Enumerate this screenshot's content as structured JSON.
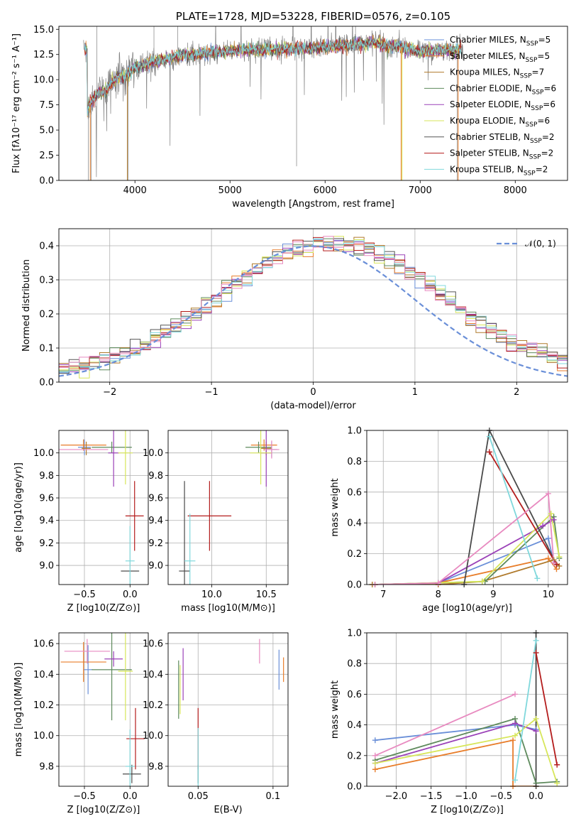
{
  "colors": [
    "#6a8fd8",
    "#e87d2a",
    "#b07a2c",
    "#5e8a5c",
    "#9b42b8",
    "#d7e65a",
    "#555555",
    "#b41c1c",
    "#80d8dc",
    "#e88ac0",
    "#4a4a4a"
  ],
  "chart_data": [
    {
      "id": "spectrum",
      "type": "line",
      "title": "PLATE=1728, MJD=53228, FIBERID=0576, z=0.105",
      "xlabel": "wavelength [Angstrom, rest frame]",
      "ylabel": "Flux [fλ10⁻¹⁷ erg cm⁻² s⁻¹ A⁻¹]",
      "xlim": [
        3200,
        8550
      ],
      "ylim": [
        0,
        15.3
      ],
      "xticks": [
        4000,
        5000,
        6000,
        7000,
        8000
      ],
      "yticks": [
        0.0,
        2.5,
        5.0,
        7.5,
        10.0,
        12.5,
        15.0
      ],
      "grid": false,
      "legend_position": "right",
      "series": [
        {
          "name": "Chabrier MILES, N_SSP=5",
          "color": "#6a8fd8"
        },
        {
          "name": "Salpeter MILES, N_SSP=5",
          "color": "#e87d2a"
        },
        {
          "name": "Kroupa MILES, N_SSP=7",
          "color": "#b07a2c"
        },
        {
          "name": "Chabrier ELODIE, N_SSP=6",
          "color": "#5e8a5c"
        },
        {
          "name": "Salpeter ELODIE, N_SSP=6",
          "color": "#9b42b8"
        },
        {
          "name": "Kroupa ELODIE, N_SSP=6",
          "color": "#d7e65a"
        },
        {
          "name": "Chabrier STELIB, N_SSP=2",
          "color": "#555555"
        },
        {
          "name": "Salpeter STELIB, N_SSP=2",
          "color": "#b41c1c"
        },
        {
          "name": "Kroupa STELIB, N_SSP=2",
          "color": "#80d8dc"
        }
      ],
      "continuum": [
        [
          3500,
          7.2
        ],
        [
          3600,
          8.5
        ],
        [
          3700,
          9.0
        ],
        [
          3800,
          10.2
        ],
        [
          3900,
          10.3
        ],
        [
          4000,
          11.2
        ],
        [
          4200,
          11.8
        ],
        [
          4500,
          12.4
        ],
        [
          5000,
          12.9
        ],
        [
          5500,
          13.0
        ],
        [
          6000,
          13.2
        ],
        [
          6500,
          13.7
        ],
        [
          6800,
          13.2
        ],
        [
          7000,
          12.8
        ],
        [
          7400,
          13.0
        ]
      ]
    },
    {
      "id": "residuals",
      "type": "histogram",
      "xlabel": "(data-model)/error",
      "ylabel": "Normed distribution",
      "xlim": [
        -2.5,
        2.5
      ],
      "ylim": [
        0,
        0.45
      ],
      "xticks": [
        -2,
        -1,
        0,
        1,
        2
      ],
      "yticks": [
        0.0,
        0.1,
        0.2,
        0.3,
        0.4
      ],
      "grid": true,
      "reference_curve": "N(0,1)",
      "legend_position": "top-right",
      "bin_width": 0.1
    },
    {
      "id": "age-vs-z",
      "type": "scatter",
      "xlabel": "Z [log10(Z/Z⊙)]",
      "ylabel": "age [log10(age/yr)]",
      "xlim": [
        -0.78,
        0.2
      ],
      "ylim": [
        8.83,
        10.2
      ],
      "xticks": [
        -0.5,
        0.0
      ],
      "yticks": [
        9.0,
        9.2,
        9.4,
        9.6,
        9.8,
        10.0
      ],
      "grid": true,
      "points": [
        {
          "model": "Chabrier MILES",
          "x": -0.5,
          "y": 10.05,
          "xerr": 0.07,
          "yerr": 0.07
        },
        {
          "model": "Salpeter MILES",
          "x": -0.51,
          "y": 10.07,
          "xerr": 0.25,
          "yerr": 0.05
        },
        {
          "model": "Kroupa MILES",
          "x": -0.48,
          "y": 10.04,
          "xerr": 0.05,
          "yerr": 0.06
        },
        {
          "model": "Chabrier ELODIE",
          "x": -0.2,
          "y": 10.05,
          "xerr": 0.22,
          "yerr": 0.05
        },
        {
          "model": "Salpeter ELODIE",
          "x": -0.18,
          "y": 10.0,
          "xerr": 0.06,
          "yerr": 0.3
        },
        {
          "model": "Kroupa ELODIE",
          "x": -0.05,
          "y": 10.0,
          "xerr": 0.08,
          "yerr": 0.28
        },
        {
          "model": "Chabrier STELIB",
          "x": 0.0,
          "y": 8.95,
          "xerr": 0.1,
          "yerr": 0.0
        },
        {
          "model": "Salpeter STELIB",
          "x": 0.05,
          "y": 9.44,
          "xerr": 0.1,
          "yerr": 0.31
        },
        {
          "model": "Kroupa STELIB",
          "x": 0.0,
          "y": 9.04,
          "xerr": 0.05,
          "yerr": 0.31
        },
        {
          "model": "Salpeter STELIB extra",
          "x": -0.52,
          "y": 10.03,
          "xerr": 0.28,
          "yerr": 0.0
        }
      ]
    },
    {
      "id": "age-vs-mass",
      "type": "scatter",
      "xlabel": "mass [log10(M/M⊙)]",
      "ylabel": "",
      "xlim": [
        9.6,
        10.7
      ],
      "ylim": [
        8.83,
        10.2
      ],
      "xticks": [
        10.0,
        10.5
      ],
      "yticks": [
        9.0,
        9.2,
        9.4,
        9.6,
        9.8,
        10.0
      ],
      "grid": true,
      "points": [
        {
          "model": "Chabrier MILES",
          "x": 10.55,
          "y": 10.03,
          "xerr": 0.05,
          "yerr": 0.07
        },
        {
          "model": "Salpeter MILES",
          "x": 10.48,
          "y": 10.07,
          "xerr": 0.12,
          "yerr": 0.05
        },
        {
          "model": "Kroupa MILES",
          "x": 10.5,
          "y": 10.04,
          "xerr": 0.05,
          "yerr": 0.06
        },
        {
          "model": "Chabrier ELODIE",
          "x": 10.43,
          "y": 10.05,
          "xerr": 0.12,
          "yerr": 0.05
        },
        {
          "model": "Salpeter ELODIE",
          "x": 10.5,
          "y": 10.0,
          "xerr": 0.05,
          "yerr": 0.3
        },
        {
          "model": "Kroupa ELODIE",
          "x": 10.45,
          "y": 10.0,
          "xerr": 0.1,
          "yerr": 0.28
        },
        {
          "model": "Chabrier STELIB",
          "x": 9.75,
          "y": 8.95,
          "xerr": 0.05,
          "yerr": 0.8
        },
        {
          "model": "Salpeter STELIB",
          "x": 9.98,
          "y": 9.44,
          "xerr": 0.2,
          "yerr": 0.31
        },
        {
          "model": "Kroupa STELIB",
          "x": 9.8,
          "y": 9.04,
          "xerr": 0.05,
          "yerr": 0.42
        },
        {
          "model": "Pink",
          "x": 10.55,
          "y": 10.03,
          "xerr": 0.07,
          "yerr": 0.08
        }
      ]
    },
    {
      "id": "weight-vs-age",
      "type": "line",
      "xlabel": "age [log10(age/yr)]",
      "ylabel": "mass weight",
      "xlim": [
        6.7,
        10.35
      ],
      "ylim": [
        0,
        1.0
      ],
      "xticks": [
        7,
        8,
        9,
        10
      ],
      "yticks": [
        0.0,
        0.2,
        0.4,
        0.6,
        0.8,
        1.0
      ],
      "grid": true,
      "series": [
        {
          "color": "#6a8fd8",
          "x": [
            6.85,
            8.0,
            10.0,
            10.1
          ],
          "y": [
            0.0,
            0.01,
            0.3,
            0.14
          ]
        },
        {
          "color": "#e87d2a",
          "x": [
            6.85,
            8.0,
            10.0,
            10.15
          ],
          "y": [
            0.0,
            0.01,
            0.17,
            0.1
          ]
        },
        {
          "color": "#b07a2c",
          "x": [
            6.8,
            8.0,
            8.8,
            10.1,
            10.2
          ],
          "y": [
            0.0,
            0.0,
            0.02,
            0.16,
            0.12
          ]
        },
        {
          "color": "#5e8a5c",
          "x": [
            6.85,
            8.85,
            10.1,
            10.2
          ],
          "y": [
            0.0,
            0.02,
            0.44,
            0.17
          ]
        },
        {
          "color": "#9b42b8",
          "x": [
            6.85,
            8.0,
            9.9,
            10.1
          ],
          "y": [
            0.0,
            0.01,
            0.38,
            0.42
          ]
        },
        {
          "color": "#d7e65a",
          "x": [
            6.85,
            8.8,
            10.05,
            10.2
          ],
          "y": [
            0.0,
            0.02,
            0.46,
            0.18
          ]
        },
        {
          "color": "#4a4a4a",
          "x": [
            8.47,
            8.93,
            10.15
          ],
          "y": [
            0.0,
            1.0,
            0.13
          ]
        },
        {
          "color": "#b41c1c",
          "x": [
            8.93,
            10.15
          ],
          "y": [
            0.86,
            0.13
          ]
        },
        {
          "color": "#80d8dc",
          "x": [
            8.93,
            9.8
          ],
          "y": [
            0.96,
            0.04
          ]
        },
        {
          "color": "#e88ac0",
          "x": [
            6.85,
            8.0,
            10.0,
            10.1
          ],
          "y": [
            0.0,
            0.01,
            0.59,
            0.14
          ]
        }
      ]
    },
    {
      "id": "mass-vs-z",
      "type": "scatter",
      "xlabel": "Z [log10(Z/Z⊙)]",
      "ylabel": "mass [log10(M/M⊙)]",
      "xlim": [
        -0.78,
        0.2
      ],
      "ylim": [
        9.67,
        10.67
      ],
      "xticks": [
        -0.5,
        0.0
      ],
      "yticks": [
        9.8,
        10.0,
        10.2,
        10.4,
        10.6
      ],
      "grid": true,
      "points": [
        {
          "model": "Chabrier MILES",
          "x": -0.46,
          "y": 10.43,
          "xerr": 0.05,
          "yerr": 0.16
        },
        {
          "model": "Salpeter MILES",
          "x": -0.51,
          "y": 10.48,
          "xerr": 0.25,
          "yerr": 0.13
        },
        {
          "model": "Chabrier ELODIE",
          "x": -0.2,
          "y": 10.43,
          "xerr": 0.22,
          "yerr": 0.33
        },
        {
          "model": "Salpeter ELODIE",
          "x": -0.18,
          "y": 10.5,
          "xerr": 0.1,
          "yerr": 0.05
        },
        {
          "model": "Kroupa ELODIE",
          "x": -0.05,
          "y": 10.42,
          "xerr": 0.08,
          "yerr": 0.32
        },
        {
          "model": "Chabrier STELIB",
          "x": 0.02,
          "y": 9.75,
          "xerr": 0.1,
          "yerr": 0.06
        },
        {
          "model": "Salpeter STELIB",
          "x": 0.06,
          "y": 9.98,
          "xerr": 0.1,
          "yerr": 0.2
        },
        {
          "model": "Kroupa STELIB",
          "x": 0.0,
          "y": 9.8,
          "xerr": 0.05,
          "yerr": 0.24
        },
        {
          "model": "Pink",
          "x": -0.47,
          "y": 10.55,
          "xerr": 0.25,
          "yerr": 0.08
        }
      ]
    },
    {
      "id": "mass-vs-ebv",
      "type": "scatter",
      "xlabel": "E(B-V)",
      "ylabel": "",
      "xlim": [
        0.03,
        0.11
      ],
      "ylim": [
        9.67,
        10.67
      ],
      "xticks": [
        0.05,
        0.1
      ],
      "yticks": [
        9.8,
        10.0,
        10.2,
        10.4,
        10.6
      ],
      "grid": true,
      "points": [
        {
          "model": "Chabrier MILES",
          "x": 0.104,
          "y": 10.43,
          "xerr": 0.0,
          "yerr": 0.13
        },
        {
          "model": "Salpeter MILES",
          "x": 0.107,
          "y": 10.43,
          "xerr": 0.0,
          "yerr": 0.08
        },
        {
          "model": "Chabrier ELODIE",
          "x": 0.037,
          "y": 10.3,
          "xerr": 0.0,
          "yerr": 0.19
        },
        {
          "model": "Salpeter ELODIE",
          "x": 0.04,
          "y": 10.4,
          "xerr": 0.0,
          "yerr": 0.17
        },
        {
          "model": "Kroupa ELODIE",
          "x": 0.038,
          "y": 10.3,
          "xerr": 0.0,
          "yerr": 0.16
        },
        {
          "model": "Salpeter STELIB",
          "x": 0.05,
          "y": 9.98,
          "xerr": 0.0,
          "yerr": 0.2
        },
        {
          "model": "Chabrier STELIB",
          "x": 0.05,
          "y": 9.75,
          "xerr": 0.0,
          "yerr": 0.06
        },
        {
          "model": "Kroupa STELIB",
          "x": 0.05,
          "y": 9.85,
          "xerr": 0.0,
          "yerr": 0.2
        },
        {
          "model": "Pink",
          "x": 0.091,
          "y": 10.55,
          "xerr": 0.0,
          "yerr": 0.08
        }
      ]
    },
    {
      "id": "weight-vs-z",
      "type": "line",
      "xlabel": "Z [log10(Z/Z⊙)]",
      "ylabel": "mass weight",
      "xlim": [
        -2.42,
        0.45
      ],
      "ylim": [
        0,
        1.0
      ],
      "xticks": [
        -2.0,
        -1.5,
        -1.0,
        -0.5,
        0.0
      ],
      "yticks": [
        0.0,
        0.2,
        0.4,
        0.6,
        0.8,
        1.0
      ],
      "grid": true,
      "series": [
        {
          "color": "#6a8fd8",
          "x": [
            -2.3,
            -0.3,
            0.0
          ],
          "y": [
            0.3,
            0.4,
            0.37
          ]
        },
        {
          "color": "#e87d2a",
          "x": [
            -2.3,
            -0.33,
            -0.33,
            0.0
          ],
          "y": [
            0.11,
            0.3,
            0.0,
            0.0
          ]
        },
        {
          "color": "#5e8a5c",
          "x": [
            -2.3,
            -0.3,
            0.0,
            0.3
          ],
          "y": [
            0.17,
            0.44,
            0.02,
            0.03
          ]
        },
        {
          "color": "#9b42b8",
          "x": [
            -2.3,
            -0.3,
            0.0
          ],
          "y": [
            0.15,
            0.41,
            0.36
          ]
        },
        {
          "color": "#d7e65a",
          "x": [
            -2.3,
            -0.3,
            0.0,
            0.3
          ],
          "y": [
            0.15,
            0.33,
            0.44,
            0.02
          ]
        },
        {
          "color": "#4a4a4a",
          "x": [
            0.0,
            0.0
          ],
          "y": [
            1.0,
            0.0
          ]
        },
        {
          "color": "#b41c1c",
          "x": [
            0.0,
            0.3
          ],
          "y": [
            0.87,
            0.14
          ]
        },
        {
          "color": "#80d8dc",
          "x": [
            -0.3,
            0.0
          ],
          "y": [
            0.04,
            0.95
          ]
        },
        {
          "color": "#e88ac0",
          "x": [
            -2.3,
            -0.3
          ],
          "y": [
            0.2,
            0.6
          ]
        }
      ]
    }
  ]
}
